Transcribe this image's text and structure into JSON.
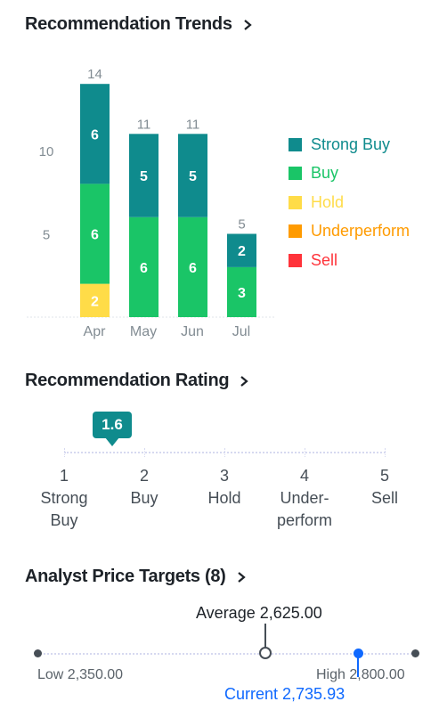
{
  "trends": {
    "title": "Recommendation Trends"
  },
  "chart_data": {
    "type": "bar",
    "stacked": true,
    "categories": [
      "Apr",
      "May",
      "Jun",
      "Jul"
    ],
    "series": [
      {
        "name": "Strong Buy",
        "color": "#0f8b8d",
        "values": [
          6,
          5,
          5,
          2
        ]
      },
      {
        "name": "Buy",
        "color": "#1ac567",
        "values": [
          6,
          6,
          6,
          3
        ]
      },
      {
        "name": "Hold",
        "color": "#ffdc48",
        "values": [
          2,
          0,
          0,
          0
        ]
      },
      {
        "name": "Underperform",
        "color": "#ff9b00",
        "values": [
          0,
          0,
          0,
          0
        ]
      },
      {
        "name": "Sell",
        "color": "#ff333a",
        "values": [
          0,
          0,
          0,
          0
        ]
      }
    ],
    "totals": [
      14,
      11,
      11,
      5
    ],
    "yticks": [
      5,
      10
    ],
    "ylim": [
      0,
      14
    ]
  },
  "legend_colors": {
    "Strong Buy": "#0f8b8d",
    "Buy": "#1ac567",
    "Hold": "#ffdc48",
    "Underperform": "#ff9b00",
    "Sell": "#ff333a"
  },
  "rating": {
    "title": "Recommendation Rating",
    "value": "1.6",
    "value_num": 1.6,
    "scale": [
      {
        "num": "1",
        "label_line1": "Strong",
        "label_line2": "Buy"
      },
      {
        "num": "2",
        "label_line1": "Buy",
        "label_line2": ""
      },
      {
        "num": "3",
        "label_line1": "Hold",
        "label_line2": ""
      },
      {
        "num": "4",
        "label_line1": "Under-",
        "label_line2": "perform"
      },
      {
        "num": "5",
        "label_line1": "Sell",
        "label_line2": ""
      }
    ]
  },
  "price_targets": {
    "title": "Analyst Price Targets (8)",
    "average_label": "Average 2,625.00",
    "low_label": "Low 2,350.00",
    "high_label": "High 2,800.00",
    "current_label": "Current 2,735.93",
    "low": 2350.0,
    "average": 2625.0,
    "high": 2800.0,
    "current": 2735.93
  }
}
